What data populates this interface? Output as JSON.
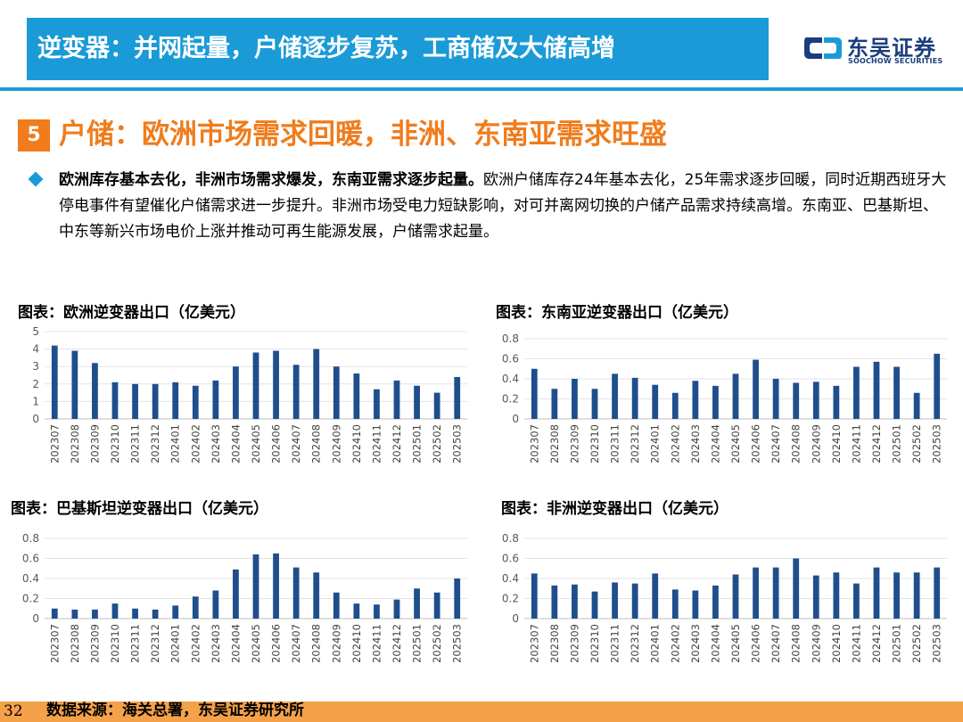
{
  "header": {
    "title": "逆变器：并网起量，户储逐步复苏，工商储及大储高增",
    "logo_cn": "东吴证券",
    "logo_en": "SOOCHOW SECURITIES"
  },
  "section": {
    "number": "5",
    "title": "户储：欧洲市场需求回暖，非洲、东南亚需求旺盛"
  },
  "bullet": {
    "lead": "欧洲库存基本去化，非洲市场需求爆发，东南亚需求逐步起量。",
    "body": "欧洲户储库存24年基本去化，25年需求逐步回暖，同时近期西班牙大停电事件有望催化户储需求进一步提升。非洲市场受电力短缺影响，对可并离网切换的户储产品需求持续高增。东南亚、巴基斯坦、中东等新兴市场电价上涨并推动可再生能源发展，户储需求起量。"
  },
  "footer": {
    "page": "32",
    "source": "数据来源：海关总署，东吴证券研究所"
  },
  "colors": {
    "header": "#1a9bd7",
    "accent_orange": "#f07c1c",
    "bar": "#1f4e8c",
    "footer": "#f4a14a"
  },
  "chart_data": [
    {
      "type": "bar",
      "title": "图表：欧洲逆变器出口（亿美元）",
      "categories": [
        "202307",
        "202308",
        "202309",
        "202310",
        "202311",
        "202312",
        "202401",
        "202402",
        "202403",
        "202404",
        "202405",
        "202406",
        "202407",
        "202408",
        "202409",
        "202410",
        "202411",
        "202412",
        "202501",
        "202502",
        "202503"
      ],
      "values": [
        4.2,
        3.9,
        3.2,
        2.1,
        2.0,
        2.0,
        2.1,
        1.9,
        2.2,
        3.0,
        3.8,
        3.9,
        3.1,
        4.0,
        3.0,
        2.6,
        1.7,
        2.2,
        1.9,
        1.5,
        2.4
      ],
      "ylim": [
        0,
        5
      ],
      "yticks": [
        0,
        1,
        2,
        3,
        4,
        5
      ],
      "grid": true
    },
    {
      "type": "bar",
      "title": "图表：东南亚逆变器出口（亿美元）",
      "categories": [
        "202307",
        "202308",
        "202309",
        "202310",
        "202311",
        "202312",
        "202401",
        "202402",
        "202403",
        "202404",
        "202405",
        "202406",
        "202407",
        "202408",
        "202409",
        "202410",
        "202411",
        "202412",
        "202501",
        "202502",
        "202503"
      ],
      "values": [
        0.5,
        0.3,
        0.4,
        0.3,
        0.45,
        0.41,
        0.34,
        0.26,
        0.38,
        0.33,
        0.45,
        0.59,
        0.4,
        0.36,
        0.37,
        0.33,
        0.52,
        0.57,
        0.52,
        0.26,
        0.65
      ],
      "ylim": [
        0,
        0.8
      ],
      "yticks": [
        0,
        0.2,
        0.4,
        0.6,
        0.8
      ],
      "grid": true
    },
    {
      "type": "bar",
      "title": "图表：巴基斯坦逆变器出口（亿美元）",
      "categories": [
        "202307",
        "202308",
        "202309",
        "202310",
        "202311",
        "202312",
        "202401",
        "202402",
        "202403",
        "202404",
        "202405",
        "202406",
        "202407",
        "202408",
        "202409",
        "202410",
        "202411",
        "202412",
        "202501",
        "202502",
        "202503"
      ],
      "values": [
        0.1,
        0.09,
        0.09,
        0.15,
        0.1,
        0.09,
        0.13,
        0.22,
        0.28,
        0.49,
        0.64,
        0.65,
        0.51,
        0.46,
        0.26,
        0.15,
        0.14,
        0.19,
        0.3,
        0.26,
        0.4
      ],
      "ylim": [
        0,
        0.8
      ],
      "yticks": [
        0,
        0.2,
        0.4,
        0.6,
        0.8
      ],
      "grid": true
    },
    {
      "type": "bar",
      "title": "图表：非洲逆变器出口（亿美元）",
      "categories": [
        "202307",
        "202308",
        "202309",
        "202310",
        "202311",
        "202312",
        "202401",
        "202402",
        "202403",
        "202404",
        "202405",
        "202406",
        "202407",
        "202408",
        "202409",
        "202410",
        "202411",
        "202412",
        "202501",
        "202502",
        "202503"
      ],
      "values": [
        0.45,
        0.33,
        0.34,
        0.27,
        0.36,
        0.35,
        0.45,
        0.29,
        0.28,
        0.33,
        0.44,
        0.51,
        0.51,
        0.6,
        0.43,
        0.46,
        0.35,
        0.51,
        0.46,
        0.46,
        0.51
      ],
      "ylim": [
        0,
        0.8
      ],
      "yticks": [
        0,
        0.2,
        0.4,
        0.6,
        0.8
      ],
      "grid": true
    }
  ]
}
